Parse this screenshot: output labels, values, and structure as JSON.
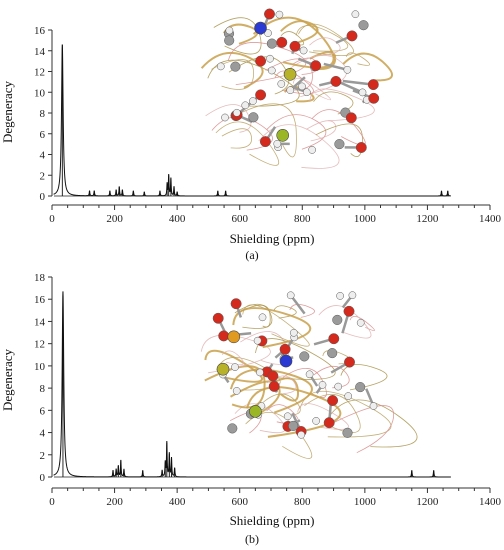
{
  "chart_data": [
    {
      "type": "line",
      "panel_label": "(a)",
      "xlabel": "Shielding (ppm)",
      "ylabel": "Degeneracy",
      "xlim": [
        0,
        1400
      ],
      "ylim": [
        0,
        16
      ],
      "xticks": [
        0,
        200,
        400,
        600,
        800,
        1000,
        1200,
        1400
      ],
      "yticks": [
        0,
        2,
        4,
        6,
        8,
        10,
        12,
        14,
        16
      ],
      "grid": false,
      "peaks": [
        {
          "x": 33,
          "y": 14.6
        },
        {
          "x": 120,
          "y": 0.5
        },
        {
          "x": 135,
          "y": 0.5
        },
        {
          "x": 185,
          "y": 0.5
        },
        {
          "x": 205,
          "y": 0.6
        },
        {
          "x": 215,
          "y": 0.9
        },
        {
          "x": 225,
          "y": 0.6
        },
        {
          "x": 260,
          "y": 0.5
        },
        {
          "x": 295,
          "y": 0.4
        },
        {
          "x": 345,
          "y": 0.5
        },
        {
          "x": 368,
          "y": 1.2
        },
        {
          "x": 373,
          "y": 2.0
        },
        {
          "x": 380,
          "y": 1.7
        },
        {
          "x": 390,
          "y": 0.9
        },
        {
          "x": 400,
          "y": 0.4
        },
        {
          "x": 530,
          "y": 0.5
        },
        {
          "x": 555,
          "y": 0.5
        },
        {
          "x": 1245,
          "y": 0.5
        },
        {
          "x": 1265,
          "y": 0.5
        }
      ]
    },
    {
      "type": "line",
      "panel_label": "(b)",
      "xlabel": "Shielding (ppm)",
      "ylabel": "Degeneracy",
      "xlim": [
        0,
        1400
      ],
      "ylim": [
        0,
        18
      ],
      "xticks": [
        0,
        200,
        400,
        600,
        800,
        1000,
        1200,
        1400
      ],
      "yticks": [
        0,
        2,
        4,
        6,
        8,
        10,
        12,
        14,
        16,
        18
      ],
      "grid": false,
      "peaks": [
        {
          "x": 35,
          "y": 16.7
        },
        {
          "x": 195,
          "y": 0.6
        },
        {
          "x": 205,
          "y": 0.7
        },
        {
          "x": 212,
          "y": 1.0
        },
        {
          "x": 220,
          "y": 1.5
        },
        {
          "x": 230,
          "y": 0.7
        },
        {
          "x": 290,
          "y": 0.6
        },
        {
          "x": 352,
          "y": 0.6
        },
        {
          "x": 362,
          "y": 1.3
        },
        {
          "x": 367,
          "y": 3.1
        },
        {
          "x": 375,
          "y": 2.1
        },
        {
          "x": 382,
          "y": 1.7
        },
        {
          "x": 392,
          "y": 0.8
        },
        {
          "x": 1150,
          "y": 0.6
        },
        {
          "x": 1220,
          "y": 0.6
        }
      ]
    }
  ]
}
